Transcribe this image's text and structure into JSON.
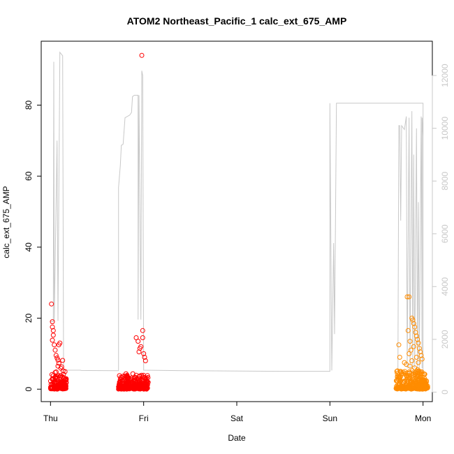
{
  "chart_data": {
    "type": "scatter",
    "title": "ATOM2 Northeast_Pacific_1 calc_ext_675_AMP",
    "xlabel": "Date",
    "ylabel": "calc_ext_675_AMP",
    "x_ticks": [
      "Thu",
      "Fri",
      "Sat",
      "Sun",
      "Mon"
    ],
    "x_unit": "days",
    "xlim": [
      -0.1,
      4.1
    ],
    "ylim": [
      -3.5,
      98
    ],
    "y_ticks": [
      0,
      20,
      40,
      60,
      80
    ],
    "y2lim": [
      -360,
      13300
    ],
    "y2_ticks": [
      0,
      2000,
      4000,
      6000,
      8000,
      10000,
      12000
    ],
    "grid": false,
    "colors": {
      "red": "#ff0000",
      "orange": "#ff8c00",
      "grey_line": "#c8c8c8",
      "axis": "#000000"
    },
    "series": [
      {
        "marker": "open-circle",
        "color": "#ff0000",
        "clusters": [
          {
            "x_start": 0.0,
            "x_end": 0.17,
            "dense_max": 5,
            "points": [
              [
                0.01,
                24.0
              ],
              [
                0.02,
                19.0
              ],
              [
                0.02,
                17.5
              ],
              [
                0.03,
                16.5
              ],
              [
                0.03,
                15.2
              ],
              [
                0.02,
                13.8
              ],
              [
                0.04,
                12.5
              ],
              [
                0.05,
                11.0
              ],
              [
                0.06,
                9.5
              ],
              [
                0.07,
                8.8
              ],
              [
                0.08,
                8.2
              ],
              [
                0.09,
                7.3
              ],
              [
                0.1,
                13.0
              ],
              [
                0.09,
                12.5
              ],
              [
                0.08,
                6.5
              ],
              [
                0.11,
                5.9
              ],
              [
                0.13,
                8.1
              ],
              [
                0.12,
                6.3
              ],
              [
                0.14,
                4.2
              ],
              [
                0.16,
                2.5
              ]
            ]
          },
          {
            "x_start": 0.73,
            "x_end": 1.05,
            "dense_max": 4,
            "points": [
              [
                0.75,
                2.0
              ],
              [
                0.82,
                1.5
              ],
              [
                0.88,
                1.7
              ],
              [
                0.92,
                14.5
              ],
              [
                0.94,
                13.5
              ],
              [
                0.95,
                10.5
              ],
              [
                0.96,
                11.5
              ],
              [
                0.97,
                12.0
              ],
              [
                0.98,
                94.0
              ],
              [
                0.99,
                16.5
              ],
              [
                0.99,
                14.5
              ],
              [
                1.0,
                10.0
              ],
              [
                1.01,
                9.0
              ],
              [
                1.02,
                8.0
              ]
            ]
          }
        ]
      },
      {
        "marker": "open-circle",
        "color": "#ff8c00",
        "clusters": [
          {
            "x_start": 3.97,
            "x_end": 4.05,
            "dense_max": 2.5,
            "points": [
              [
                3.99,
                2.8
              ],
              [
                4.01,
                2.2
              ],
              [
                4.03,
                1.8
              ],
              [
                4.02,
                2.5
              ]
            ]
          },
          {
            "x_start": 3.71,
            "x_end": 4.03,
            "dense_max": 5,
            "points": [
              [
                3.74,
                12.5
              ],
              [
                3.75,
                9.0
              ],
              [
                3.76,
                5.0
              ],
              [
                3.8,
                7.5
              ],
              [
                3.83,
                26.0
              ],
              [
                3.85,
                26.0
              ],
              [
                3.84,
                16.5
              ],
              [
                3.86,
                13.5
              ],
              [
                3.88,
                20.0
              ],
              [
                3.89,
                19.5
              ],
              [
                3.9,
                18.5
              ],
              [
                3.91,
                17.5
              ],
              [
                3.92,
                16.0
              ],
              [
                3.93,
                15.0
              ],
              [
                3.94,
                14.0
              ],
              [
                3.95,
                13.0
              ],
              [
                3.96,
                11.5
              ],
              [
                3.97,
                10.5
              ],
              [
                3.98,
                9.5
              ],
              [
                3.99,
                8.5
              ],
              [
                3.9,
                12.0
              ],
              [
                3.87,
                11.0
              ],
              [
                3.85,
                10.0
              ],
              [
                3.82,
                7.0
              ],
              [
                3.93,
                9.0
              ],
              [
                3.95,
                7.5
              ],
              [
                3.88,
                8.0
              ],
              [
                3.86,
                6.5
              ],
              [
                3.91,
                6.0
              ],
              [
                3.94,
                5.5
              ]
            ]
          }
        ]
      },
      {
        "name": "",
        "axis": "right",
        "style": "line",
        "color": "#c8c8c8",
        "points": [
          [
            0.0,
            2670
          ],
          [
            0.03,
            2670
          ],
          [
            0.035,
            12520
          ],
          [
            0.04,
            2700
          ],
          [
            0.07,
            9530
          ],
          [
            0.08,
            2700
          ],
          [
            0.1,
            12880
          ],
          [
            0.13,
            12750
          ],
          [
            0.14,
            850
          ],
          [
            0.16,
            830
          ],
          [
            0.17,
            830
          ],
          [
            0.32,
            830
          ],
          [
            0.33,
            820
          ],
          [
            0.73,
            810
          ],
          [
            0.73,
            7750
          ],
          [
            0.75,
            8600
          ],
          [
            0.76,
            9350
          ],
          [
            0.78,
            9400
          ],
          [
            0.8,
            10400
          ],
          [
            0.85,
            10500
          ],
          [
            0.87,
            10600
          ],
          [
            0.88,
            11200
          ],
          [
            0.9,
            11250
          ],
          [
            0.94,
            11250
          ],
          [
            0.94,
            2750
          ],
          [
            0.95,
            11250
          ],
          [
            0.97,
            2750
          ],
          [
            0.98,
            12180
          ],
          [
            0.99,
            12000
          ],
          [
            1.0,
            830
          ],
          [
            1.5,
            810
          ],
          [
            2.5,
            790
          ],
          [
            3.0,
            790
          ],
          [
            3.0,
            10950
          ],
          [
            3.02,
            820
          ],
          [
            3.04,
            5650
          ],
          [
            3.05,
            2200
          ],
          [
            3.07,
            10950
          ],
          [
            3.5,
            10950
          ],
          [
            4.0,
            10950
          ],
          [
            4.0,
            770
          ],
          [
            3.73,
            780
          ],
          [
            3.74,
            10100
          ],
          [
            3.75,
            10100
          ],
          [
            3.76,
            6500
          ],
          [
            3.77,
            10100
          ],
          [
            3.8,
            9950
          ],
          [
            3.82,
            10450
          ],
          [
            3.83,
            900
          ],
          [
            3.85,
            10400
          ],
          [
            3.86,
            900
          ],
          [
            3.88,
            10650
          ],
          [
            3.89,
            900
          ],
          [
            3.9,
            9000
          ],
          [
            3.91,
            900
          ],
          [
            3.93,
            10000
          ],
          [
            3.94,
            900
          ],
          [
            3.95,
            7200
          ],
          [
            3.96,
            900
          ],
          [
            3.98,
            10450
          ],
          [
            3.99,
            900
          ],
          [
            3.99,
            10400
          ],
          [
            4.0,
            9700
          ],
          [
            4.0,
            10100
          ]
        ]
      }
    ]
  }
}
